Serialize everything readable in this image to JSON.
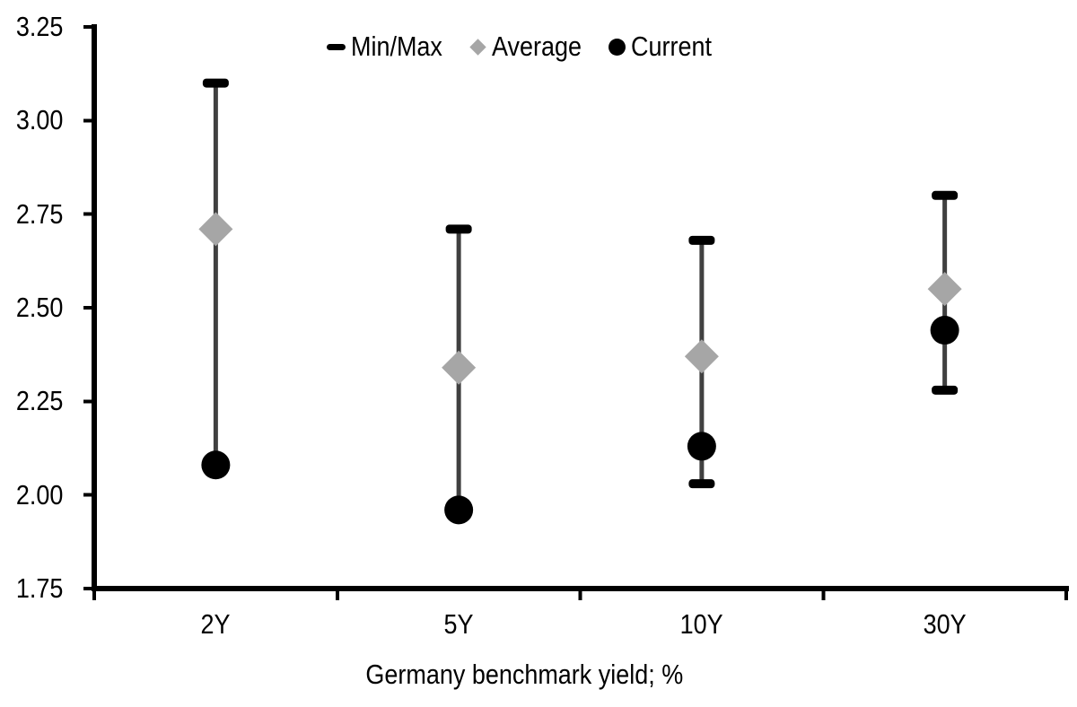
{
  "chart_data": {
    "type": "scatter",
    "subtype": "min-max-range-with-average-and-current-markers",
    "title": "",
    "xlabel": "Germany benchmark yield; %",
    "ylabel": "",
    "categories": [
      "2Y",
      "5Y",
      "10Y",
      "30Y"
    ],
    "ylim": [
      1.75,
      3.25
    ],
    "y_ticks": [
      "3.25",
      "3.00",
      "2.75",
      "2.50",
      "2.25",
      "2.00",
      "1.75"
    ],
    "grid": false,
    "legend_position": "top-center",
    "legend": [
      {
        "label": "Min/Max",
        "marker": "dash-icon",
        "color": "#000000"
      },
      {
        "label": "Average",
        "marker": "diamond-icon",
        "color": "#a6a6a6"
      },
      {
        "label": "Current",
        "marker": "circle-icon",
        "color": "#000000"
      }
    ],
    "series": [
      {
        "name": "Min/Max",
        "type": "range",
        "min": [
          2.08,
          1.96,
          2.03,
          2.28
        ],
        "max": [
          3.1,
          2.71,
          2.68,
          2.8
        ]
      },
      {
        "name": "Average",
        "type": "point",
        "marker": "diamond",
        "values": [
          2.71,
          2.34,
          2.37,
          2.55
        ]
      },
      {
        "name": "Current",
        "type": "point",
        "marker": "circle",
        "values": [
          2.08,
          1.96,
          2.13,
          2.44
        ]
      }
    ],
    "colors": {
      "range_line": "#404040",
      "range_cap": "#000000",
      "average": "#a6a6a6",
      "current": "#000000",
      "axis": "#000000",
      "text": "#000000",
      "background": "#ffffff"
    }
  }
}
